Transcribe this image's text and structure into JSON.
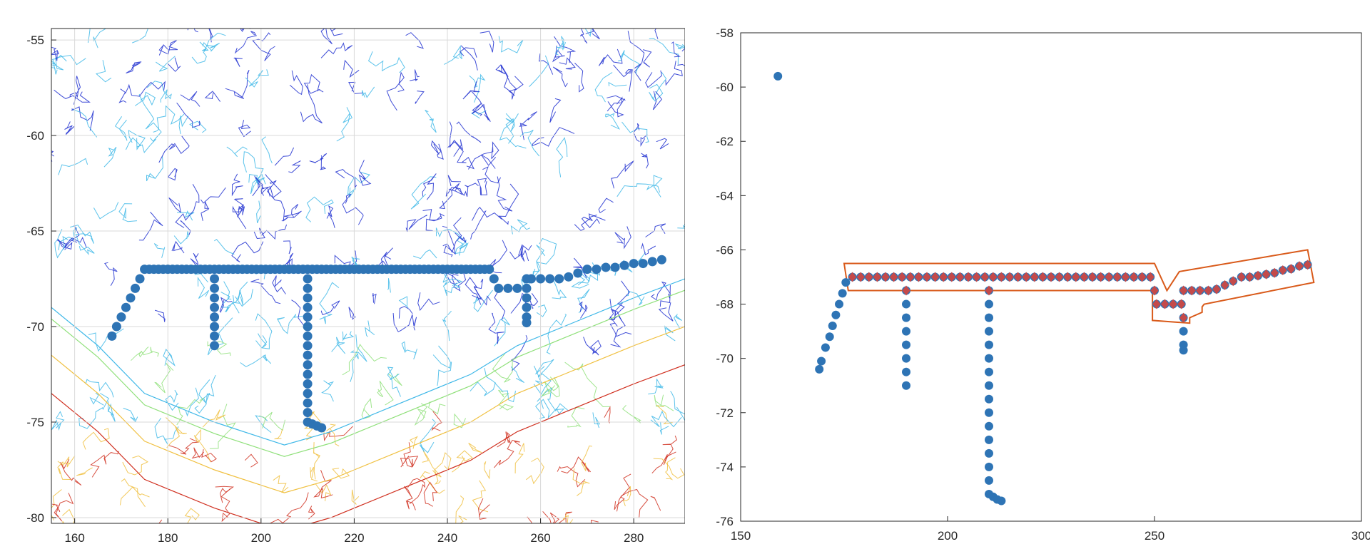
{
  "colors": {
    "station": "#2e74b5",
    "selected": "#c44a4a",
    "boundary": "#d95a1a",
    "grid": "#d9d9d9",
    "axis": "#262626",
    "contour_deep": "#1f2fd0",
    "contour_mid": "#3fb8e8",
    "contour_shelf": "#8fe07a",
    "contour_warm": "#f0c040",
    "contour_land": "#d03020"
  },
  "chart_data": [
    {
      "type": "scatter",
      "title": "",
      "xlabel": "",
      "ylabel": "",
      "xlim": [
        155,
        291
      ],
      "ylim": [
        -80.3,
        -54.4
      ],
      "grid": true,
      "background": "bathymetry contour map",
      "x_ticks": [
        {
          "value": 160,
          "label": "160"
        },
        {
          "value": 180,
          "label": "180"
        },
        {
          "value": 200,
          "label": "200"
        },
        {
          "value": 220,
          "label": "220"
        },
        {
          "value": 240,
          "label": "240"
        },
        {
          "value": 260,
          "label": "260"
        },
        {
          "value": 280,
          "label": "280"
        }
      ],
      "y_ticks": [
        {
          "value": -55,
          "label": "-55"
        },
        {
          "value": -60,
          "label": "-60"
        },
        {
          "value": -65,
          "label": "-65"
        },
        {
          "value": -70,
          "label": "-70"
        },
        {
          "value": -75,
          "label": "-75"
        },
        {
          "value": -80,
          "label": "-80"
        }
      ],
      "series": [
        {
          "marker": "filled-circle",
          "points": [
            [
              168,
              -70.5
            ],
            [
              169,
              -70.0
            ],
            [
              170,
              -69.5
            ],
            [
              171,
              -69.0
            ],
            [
              172,
              -68.5
            ],
            [
              173,
              -68.0
            ],
            [
              174,
              -67.5
            ],
            [
              175,
              -67
            ],
            [
              176,
              -67
            ],
            [
              177,
              -67
            ],
            [
              178,
              -67
            ],
            [
              179,
              -67
            ],
            [
              180,
              -67
            ],
            [
              181,
              -67
            ],
            [
              182,
              -67
            ],
            [
              183,
              -67
            ],
            [
              184,
              -67
            ],
            [
              185,
              -67
            ],
            [
              186,
              -67
            ],
            [
              187,
              -67
            ],
            [
              188,
              -67
            ],
            [
              189,
              -67
            ],
            [
              190,
              -67
            ],
            [
              191,
              -67
            ],
            [
              192,
              -67
            ],
            [
              193,
              -67
            ],
            [
              194,
              -67
            ],
            [
              195,
              -67
            ],
            [
              196,
              -67
            ],
            [
              197,
              -67
            ],
            [
              198,
              -67
            ],
            [
              199,
              -67
            ],
            [
              200,
              -67
            ],
            [
              201,
              -67
            ],
            [
              202,
              -67
            ],
            [
              203,
              -67
            ],
            [
              204,
              -67
            ],
            [
              205,
              -67
            ],
            [
              206,
              -67
            ],
            [
              207,
              -67
            ],
            [
              208,
              -67
            ],
            [
              209,
              -67
            ],
            [
              210,
              -67
            ],
            [
              211,
              -67
            ],
            [
              212,
              -67
            ],
            [
              213,
              -67
            ],
            [
              214,
              -67
            ],
            [
              215,
              -67
            ],
            [
              216,
              -67
            ],
            [
              217,
              -67
            ],
            [
              218,
              -67
            ],
            [
              219,
              -67
            ],
            [
              220,
              -67
            ],
            [
              221,
              -67
            ],
            [
              222,
              -67
            ],
            [
              223,
              -67
            ],
            [
              224,
              -67
            ],
            [
              225,
              -67
            ],
            [
              226,
              -67
            ],
            [
              227,
              -67
            ],
            [
              228,
              -67
            ],
            [
              229,
              -67
            ],
            [
              230,
              -67
            ],
            [
              231,
              -67
            ],
            [
              232,
              -67
            ],
            [
              233,
              -67
            ],
            [
              234,
              -67
            ],
            [
              235,
              -67
            ],
            [
              236,
              -67
            ],
            [
              237,
              -67
            ],
            [
              238,
              -67
            ],
            [
              239,
              -67
            ],
            [
              240,
              -67
            ],
            [
              241,
              -67
            ],
            [
              242,
              -67
            ],
            [
              243,
              -67
            ],
            [
              244,
              -67
            ],
            [
              245,
              -67
            ],
            [
              246,
              -67
            ],
            [
              247,
              -67
            ],
            [
              248,
              -67
            ],
            [
              249,
              -67
            ],
            [
              190,
              -67.5
            ],
            [
              190,
              -68.0
            ],
            [
              190,
              -68.5
            ],
            [
              190,
              -69.0
            ],
            [
              190,
              -69.5
            ],
            [
              190,
              -70.0
            ],
            [
              190,
              -70.5
            ],
            [
              190,
              -71.0
            ],
            [
              210,
              -67.5
            ],
            [
              210,
              -68.0
            ],
            [
              210,
              -68.5
            ],
            [
              210,
              -69.0
            ],
            [
              210,
              -69.5
            ],
            [
              210,
              -70.0
            ],
            [
              210,
              -70.5
            ],
            [
              210,
              -71.0
            ],
            [
              210,
              -71.5
            ],
            [
              210,
              -72.0
            ],
            [
              210,
              -72.5
            ],
            [
              210,
              -73.0
            ],
            [
              210,
              -73.5
            ],
            [
              210,
              -74.0
            ],
            [
              210,
              -74.5
            ],
            [
              210,
              -75.0
            ],
            [
              211,
              -75.1
            ],
            [
              212,
              -75.2
            ],
            [
              213,
              -75.3
            ],
            [
              250,
              -67.5
            ],
            [
              251,
              -68
            ],
            [
              253,
              -68
            ],
            [
              255,
              -68
            ],
            [
              257,
              -68
            ],
            [
              257,
              -67.5
            ],
            [
              258,
              -67.5
            ],
            [
              260,
              -67.5
            ],
            [
              262,
              -67.5
            ],
            [
              264,
              -67.5
            ],
            [
              266,
              -67.4
            ],
            [
              268,
              -67.2
            ],
            [
              270,
              -67.0
            ],
            [
              272,
              -67.0
            ],
            [
              274,
              -66.9
            ],
            [
              276,
              -66.9
            ],
            [
              278,
              -66.8
            ],
            [
              280,
              -66.7
            ],
            [
              282,
              -66.7
            ],
            [
              284,
              -66.6
            ],
            [
              286,
              -66.5
            ],
            [
              257,
              -68.5
            ],
            [
              257,
              -69.0
            ],
            [
              257,
              -69.5
            ],
            [
              257,
              -69.8
            ]
          ]
        }
      ]
    },
    {
      "type": "scatter",
      "title": "",
      "xlabel": "",
      "ylabel": "",
      "xlim": [
        150,
        300
      ],
      "ylim": [
        -76,
        -58
      ],
      "grid": false,
      "x_ticks": [
        {
          "value": 150,
          "label": "150"
        },
        {
          "value": 200,
          "label": "200"
        },
        {
          "value": 250,
          "label": "250"
        },
        {
          "value": 300,
          "label": "300"
        }
      ],
      "y_ticks": [
        {
          "value": -58,
          "label": "-58"
        },
        {
          "value": -60,
          "label": "-60"
        },
        {
          "value": -62,
          "label": "-62"
        },
        {
          "value": -64,
          "label": "-64"
        },
        {
          "value": -66,
          "label": "-66"
        },
        {
          "value": -68,
          "label": "-68"
        },
        {
          "value": -70,
          "label": "-70"
        },
        {
          "value": -72,
          "label": "-72"
        },
        {
          "value": -74,
          "label": "-74"
        },
        {
          "value": -76,
          "label": "-76"
        }
      ],
      "series": [
        {
          "marker": "filled-circle",
          "points": [
            [
              159,
              -59.6
            ],
            [
              169,
              -70.4
            ],
            [
              169.5,
              -70.1
            ],
            [
              170.5,
              -69.6
            ],
            [
              171.5,
              -69.2
            ],
            [
              172.2,
              -68.8
            ],
            [
              173,
              -68.4
            ],
            [
              173.8,
              -68.0
            ],
            [
              174.6,
              -67.6
            ],
            [
              175.4,
              -67.2
            ],
            [
              190,
              -68.0
            ],
            [
              190,
              -68.5
            ],
            [
              190,
              -69.0
            ],
            [
              190,
              -69.5
            ],
            [
              190,
              -70.0
            ],
            [
              190,
              -70.5
            ],
            [
              190,
              -71.0
            ],
            [
              210,
              -68.0
            ],
            [
              210,
              -68.5
            ],
            [
              210,
              -69.0
            ],
            [
              210,
              -69.5
            ],
            [
              210,
              -70.0
            ],
            [
              210,
              -70.5
            ],
            [
              210,
              -71.0
            ],
            [
              210,
              -71.5
            ],
            [
              210,
              -72.0
            ],
            [
              210,
              -72.5
            ],
            [
              210,
              -73.0
            ],
            [
              210,
              -73.5
            ],
            [
              210,
              -74.0
            ],
            [
              210,
              -74.5
            ],
            [
              210,
              -75.0
            ],
            [
              211,
              -75.1
            ],
            [
              212,
              -75.2
            ],
            [
              213,
              -75.25
            ],
            [
              257,
              -69.0
            ],
            [
              257,
              -69.5
            ],
            [
              257,
              -69.7
            ]
          ]
        },
        {
          "marker": "diamond-on-circle",
          "points": [
            [
              177,
              -67
            ],
            [
              179,
              -67
            ],
            [
              181,
              -67
            ],
            [
              183,
              -67
            ],
            [
              185,
              -67
            ],
            [
              187,
              -67
            ],
            [
              189,
              -67
            ],
            [
              191,
              -67
            ],
            [
              193,
              -67
            ],
            [
              195,
              -67
            ],
            [
              197,
              -67
            ],
            [
              199,
              -67
            ],
            [
              201,
              -67
            ],
            [
              203,
              -67
            ],
            [
              205,
              -67
            ],
            [
              207,
              -67
            ],
            [
              209,
              -67
            ],
            [
              211,
              -67
            ],
            [
              213,
              -67
            ],
            [
              215,
              -67
            ],
            [
              217,
              -67
            ],
            [
              219,
              -67
            ],
            [
              221,
              -67
            ],
            [
              223,
              -67
            ],
            [
              225,
              -67
            ],
            [
              227,
              -67
            ],
            [
              229,
              -67
            ],
            [
              231,
              -67
            ],
            [
              233,
              -67
            ],
            [
              235,
              -67
            ],
            [
              237,
              -67
            ],
            [
              239,
              -67
            ],
            [
              241,
              -67
            ],
            [
              243,
              -67
            ],
            [
              245,
              -67
            ],
            [
              247,
              -67
            ],
            [
              249,
              -67
            ],
            [
              190,
              -67.5
            ],
            [
              210,
              -67.5
            ],
            [
              250,
              -67.5
            ],
            [
              250.5,
              -68
            ],
            [
              252.5,
              -68
            ],
            [
              254.5,
              -68
            ],
            [
              256.5,
              -68
            ],
            [
              257,
              -68.5
            ],
            [
              257,
              -67.5
            ],
            [
              259,
              -67.5
            ],
            [
              261,
              -67.5
            ],
            [
              263,
              -67.5
            ],
            [
              265,
              -67.45
            ],
            [
              267,
              -67.3
            ],
            [
              269,
              -67.15
            ],
            [
              271,
              -67.0
            ],
            [
              273,
              -67.0
            ],
            [
              275,
              -66.95
            ],
            [
              277,
              -66.9
            ],
            [
              279,
              -66.85
            ],
            [
              281,
              -66.75
            ],
            [
              283,
              -66.7
            ],
            [
              285,
              -66.6
            ],
            [
              287,
              -66.55
            ]
          ]
        }
      ],
      "boundary_polygon": [
        [
          175,
          -66.5
        ],
        [
          250,
          -66.5
        ],
        [
          253,
          -67.5
        ],
        [
          256,
          -66.8
        ],
        [
          287,
          -66.0
        ],
        [
          288.5,
          -67.2
        ],
        [
          262,
          -68.0
        ],
        [
          261.5,
          -68.1
        ],
        [
          261.5,
          -68.3
        ],
        [
          258.5,
          -68.5
        ],
        [
          258.5,
          -68.7
        ],
        [
          249.5,
          -68.6
        ],
        [
          249.5,
          -67.5
        ],
        [
          176,
          -67.5
        ]
      ]
    }
  ]
}
